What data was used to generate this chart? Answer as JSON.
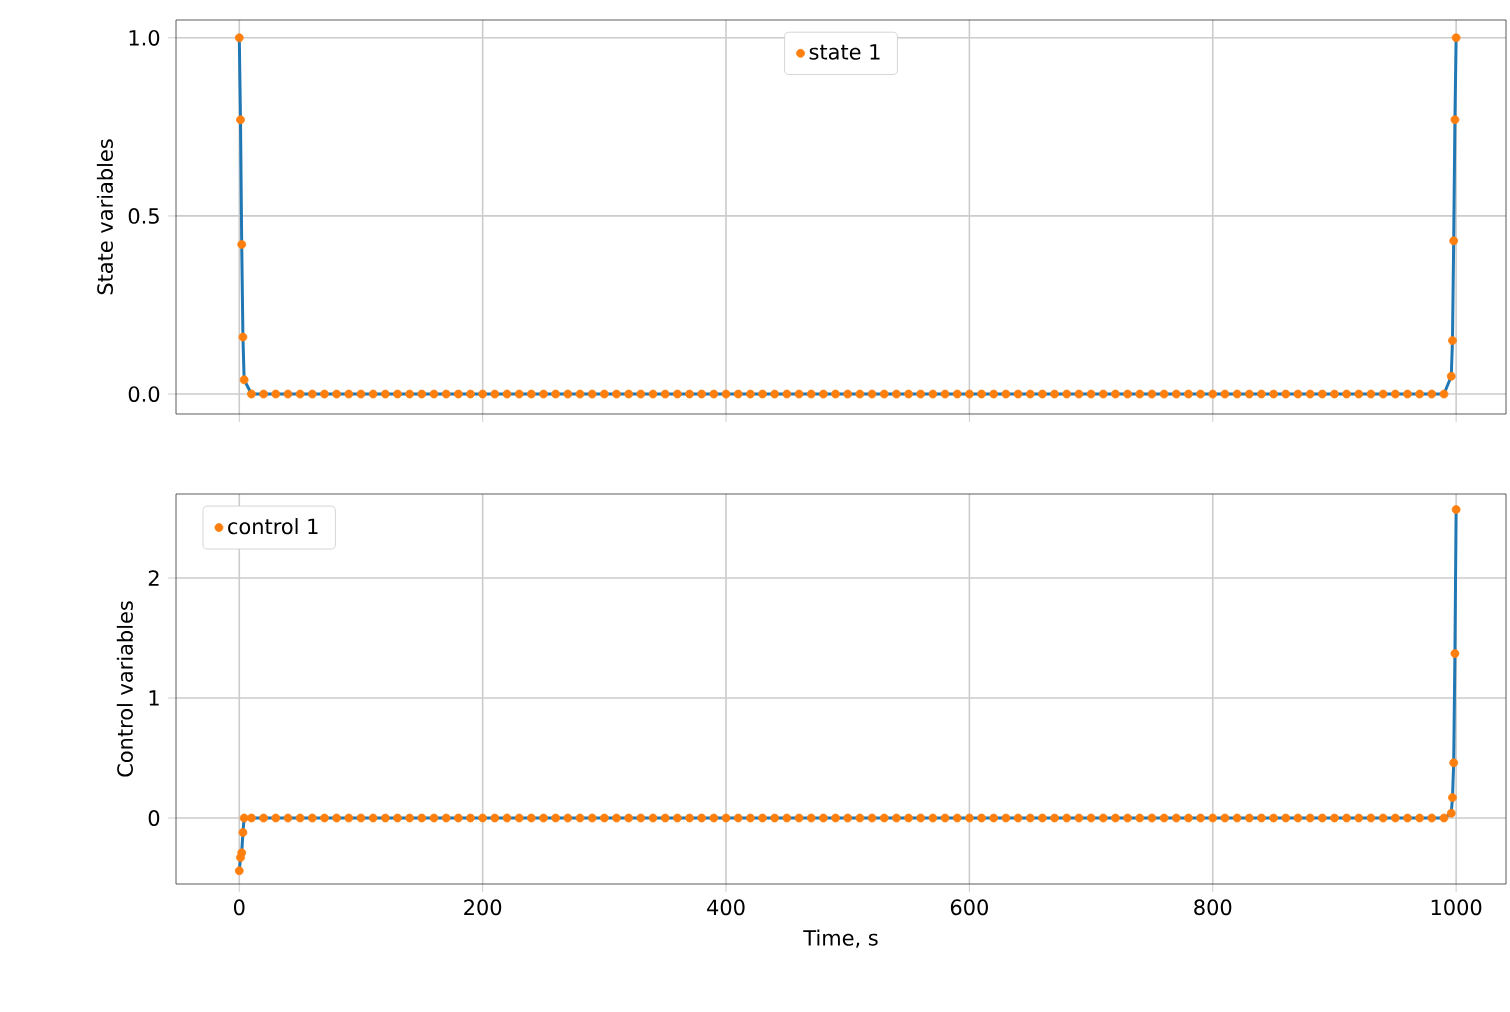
{
  "chart_data": [
    {
      "type": "line",
      "ylabel": "State variables",
      "x": [
        0,
        1,
        2,
        3,
        4,
        10,
        20,
        30,
        40,
        50,
        60,
        70,
        80,
        90,
        100,
        110,
        120,
        130,
        140,
        150,
        160,
        170,
        180,
        190,
        200,
        210,
        220,
        230,
        240,
        250,
        260,
        270,
        280,
        290,
        300,
        310,
        320,
        330,
        340,
        350,
        360,
        370,
        380,
        390,
        400,
        410,
        420,
        430,
        440,
        450,
        460,
        470,
        480,
        490,
        500,
        510,
        520,
        530,
        540,
        550,
        560,
        570,
        580,
        590,
        600,
        610,
        620,
        630,
        640,
        650,
        660,
        670,
        680,
        690,
        700,
        710,
        720,
        730,
        740,
        750,
        760,
        770,
        780,
        790,
        800,
        810,
        820,
        830,
        840,
        850,
        860,
        870,
        880,
        890,
        900,
        910,
        920,
        930,
        940,
        950,
        960,
        970,
        980,
        990,
        996,
        997,
        998,
        999,
        1000
      ],
      "series": [
        {
          "color": "#1f77b4",
          "marker": "none",
          "values": [
            1.0,
            0.77,
            0.42,
            0.16,
            0.04,
            0,
            0,
            0,
            0,
            0,
            0,
            0,
            0,
            0,
            0,
            0,
            0,
            0,
            0,
            0,
            0,
            0,
            0,
            0,
            0,
            0,
            0,
            0,
            0,
            0,
            0,
            0,
            0,
            0,
            0,
            0,
            0,
            0,
            0,
            0,
            0,
            0,
            0,
            0,
            0,
            0,
            0,
            0,
            0,
            0,
            0,
            0,
            0,
            0,
            0,
            0,
            0,
            0,
            0,
            0,
            0,
            0,
            0,
            0,
            0,
            0,
            0,
            0,
            0,
            0,
            0,
            0,
            0,
            0,
            0,
            0,
            0,
            0,
            0,
            0,
            0,
            0,
            0,
            0,
            0,
            0,
            0,
            0,
            0,
            0,
            0,
            0,
            0,
            0,
            0,
            0,
            0,
            0,
            0,
            0,
            0,
            0,
            0,
            0,
            0.05,
            0.15,
            0.43,
            0.77,
            1.0
          ]
        },
        {
          "type": "scatter",
          "name": "state 1",
          "color": "#ff7f0e",
          "marker": "circle",
          "values": [
            1.0,
            0.77,
            0.42,
            0.16,
            0.04,
            0,
            0,
            0,
            0,
            0,
            0,
            0,
            0,
            0,
            0,
            0,
            0,
            0,
            0,
            0,
            0,
            0,
            0,
            0,
            0,
            0,
            0,
            0,
            0,
            0,
            0,
            0,
            0,
            0,
            0,
            0,
            0,
            0,
            0,
            0,
            0,
            0,
            0,
            0,
            0,
            0,
            0,
            0,
            0,
            0,
            0,
            0,
            0,
            0,
            0,
            0,
            0,
            0,
            0,
            0,
            0,
            0,
            0,
            0,
            0,
            0,
            0,
            0,
            0,
            0,
            0,
            0,
            0,
            0,
            0,
            0,
            0,
            0,
            0,
            0,
            0,
            0,
            0,
            0,
            0,
            0,
            0,
            0,
            0,
            0,
            0,
            0,
            0,
            0,
            0,
            0,
            0,
            0,
            0,
            0,
            0,
            0,
            0,
            0,
            0.05,
            0.15,
            0.43,
            0.77,
            1.0
          ]
        }
      ],
      "xlim": [
        -52,
        1041
      ],
      "xticks": [
        0,
        200,
        400,
        600,
        800,
        1000
      ],
      "ylim": [
        -0.056,
        1.05
      ],
      "yticks": [
        {
          "value": 0,
          "label": "0.0"
        },
        {
          "value": 0.5,
          "label": "0.5"
        },
        {
          "value": 1.0,
          "label": "1.0"
        }
      ],
      "tick_labels": "y",
      "grid": true,
      "legend": "top"
    },
    {
      "type": "line",
      "xlabel": "Time, s",
      "ylabel": "Control variables",
      "x": [
        0,
        1,
        2,
        3,
        4,
        10,
        20,
        30,
        40,
        50,
        60,
        70,
        80,
        90,
        100,
        110,
        120,
        130,
        140,
        150,
        160,
        170,
        180,
        190,
        200,
        210,
        220,
        230,
        240,
        250,
        260,
        270,
        280,
        290,
        300,
        310,
        320,
        330,
        340,
        350,
        360,
        370,
        380,
        390,
        400,
        410,
        420,
        430,
        440,
        450,
        460,
        470,
        480,
        490,
        500,
        510,
        520,
        530,
        540,
        550,
        560,
        570,
        580,
        590,
        600,
        610,
        620,
        630,
        640,
        650,
        660,
        670,
        680,
        690,
        700,
        710,
        720,
        730,
        740,
        750,
        760,
        770,
        780,
        790,
        800,
        810,
        820,
        830,
        840,
        850,
        860,
        870,
        880,
        890,
        900,
        910,
        920,
        930,
        940,
        950,
        960,
        970,
        980,
        990,
        996,
        997,
        998,
        999,
        1000
      ],
      "series": [
        {
          "color": "#1f77b4",
          "marker": "none",
          "values": [
            -0.44,
            -0.33,
            -0.29,
            -0.12,
            0,
            0,
            0,
            0,
            0,
            0,
            0,
            0,
            0,
            0,
            0,
            0,
            0,
            0,
            0,
            0,
            0,
            0,
            0,
            0,
            0,
            0,
            0,
            0,
            0,
            0,
            0,
            0,
            0,
            0,
            0,
            0,
            0,
            0,
            0,
            0,
            0,
            0,
            0,
            0,
            0,
            0,
            0,
            0,
            0,
            0,
            0,
            0,
            0,
            0,
            0,
            0,
            0,
            0,
            0,
            0,
            0,
            0,
            0,
            0,
            0,
            0,
            0,
            0,
            0,
            0,
            0,
            0,
            0,
            0,
            0,
            0,
            0,
            0,
            0,
            0,
            0,
            0,
            0,
            0,
            0,
            0,
            0,
            0,
            0,
            0,
            0,
            0,
            0,
            0,
            0,
            0,
            0,
            0,
            0,
            0,
            0,
            0,
            0,
            0,
            0.04,
            0.17,
            0.46,
            1.37,
            2.57
          ]
        },
        {
          "type": "scatter",
          "name": "control 1",
          "color": "#ff7f0e",
          "marker": "circle",
          "values": [
            -0.44,
            -0.33,
            -0.29,
            -0.12,
            0,
            0,
            0,
            0,
            0,
            0,
            0,
            0,
            0,
            0,
            0,
            0,
            0,
            0,
            0,
            0,
            0,
            0,
            0,
            0,
            0,
            0,
            0,
            0,
            0,
            0,
            0,
            0,
            0,
            0,
            0,
            0,
            0,
            0,
            0,
            0,
            0,
            0,
            0,
            0,
            0,
            0,
            0,
            0,
            0,
            0,
            0,
            0,
            0,
            0,
            0,
            0,
            0,
            0,
            0,
            0,
            0,
            0,
            0,
            0,
            0,
            0,
            0,
            0,
            0,
            0,
            0,
            0,
            0,
            0,
            0,
            0,
            0,
            0,
            0,
            0,
            0,
            0,
            0,
            0,
            0,
            0,
            0,
            0,
            0,
            0,
            0,
            0,
            0,
            0,
            0,
            0,
            0,
            0,
            0,
            0,
            0,
            0,
            0,
            0,
            0.04,
            0.17,
            0.46,
            1.37,
            2.57
          ]
        }
      ],
      "xlim": [
        -52,
        1041
      ],
      "xticks": [
        0,
        200,
        400,
        600,
        800,
        1000
      ],
      "ylim": [
        -0.55,
        2.7
      ],
      "yticks": [
        0,
        1,
        2
      ],
      "grid": true,
      "legend": "top left"
    }
  ]
}
